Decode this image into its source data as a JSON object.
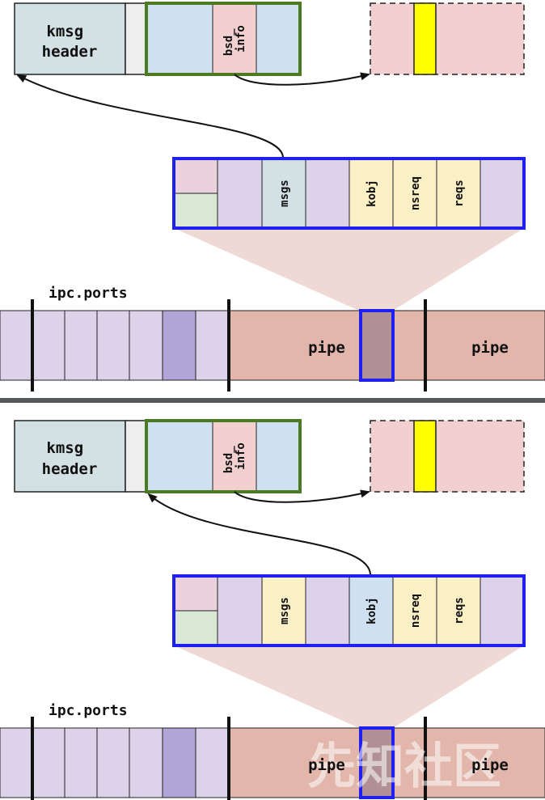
{
  "panels": [
    {
      "kmsg_header": "kmsg\nheader",
      "bsd_info": "bsd_\ninfo",
      "port_fields": [
        "msgs",
        "kobj",
        "nsreq",
        "reqs"
      ],
      "ipc_ports_label": "ipc.ports",
      "pipe_labels": [
        "pipe",
        "pipe"
      ],
      "arrow_from_field": "msgs",
      "highlighted_field": "msgs"
    },
    {
      "kmsg_header": "kmsg\nheader",
      "bsd_info": "bsd_\ninfo",
      "port_fields": [
        "msgs",
        "kobj",
        "nsreq",
        "reqs"
      ],
      "ipc_ports_label": "ipc.ports",
      "pipe_labels": [
        "pipe",
        "pipe"
      ],
      "arrow_from_field": "kobj",
      "highlighted_field": "kobj"
    }
  ],
  "watermark": "先知社区",
  "colors": {
    "header_fill": "#d3e0e4",
    "green_border": "#4a7a22",
    "blue_border": "#1f1ff0",
    "bsd_fill": "#f2d0d0",
    "msg_fill": "#cfe0f0",
    "port_fill": "#dcd3ea",
    "field_fill": "#fbefc6",
    "pipe_fill": "#e3b6ab",
    "yellow": "#ffff00"
  }
}
